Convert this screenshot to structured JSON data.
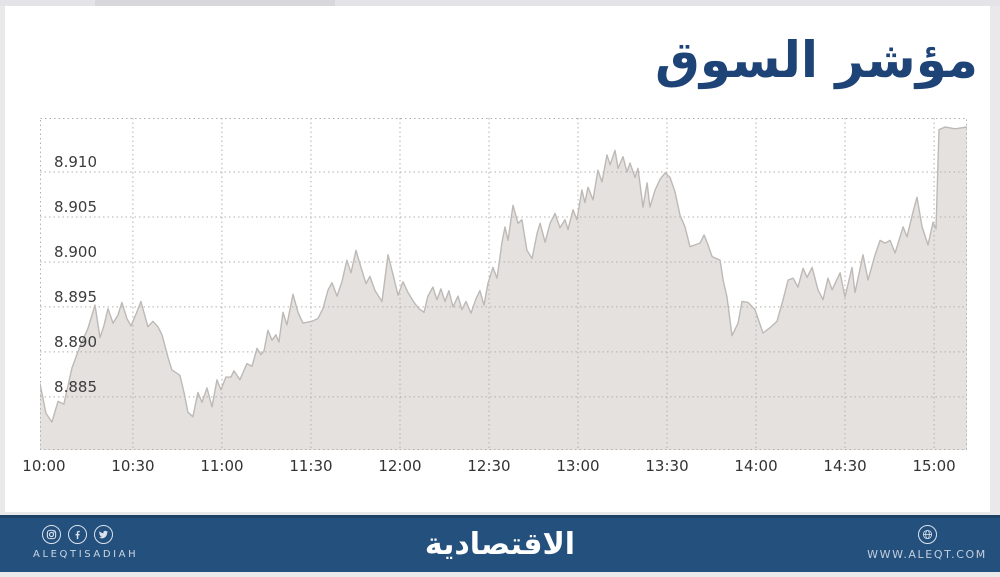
{
  "page": {
    "background": "#e9e9ec",
    "card_background": "#ffffff"
  },
  "header": {
    "title": "مؤشر السوق",
    "title_color": "#1d4377"
  },
  "chart_data": {
    "type": "area",
    "title": "مؤشر السوق",
    "xlabel": "",
    "ylabel": "",
    "x_ticks": [
      "10:00",
      "10:30",
      "11:00",
      "11:30",
      "12:00",
      "12:30",
      "13:00",
      "13:30",
      "14:00",
      "14:30",
      "15:00"
    ],
    "x_tick_hours": [
      10,
      10.5,
      11,
      11.5,
      12,
      12.5,
      13,
      13.5,
      14,
      14.5,
      15
    ],
    "y_ticks": [
      "8.910",
      "8.905",
      "8.900",
      "8.895",
      "8.890",
      "8.885"
    ],
    "y_tick_values": [
      8.91,
      8.905,
      8.9,
      8.895,
      8.89,
      8.885
    ],
    "x_range_hours": [
      9.978,
      15.185
    ],
    "y_range": [
      8.8791,
      8.916
    ],
    "grid": "dotted",
    "legend": "none",
    "fill_color": "#e4e1de",
    "line_color": "#bdb9b6",
    "grid_color": "#b3b0ac",
    "tick_label_color": "#3c3c3c",
    "points": [
      [
        9.978,
        8.8865
      ],
      [
        10.011,
        8.8832
      ],
      [
        10.045,
        8.8822
      ],
      [
        10.079,
        8.8845
      ],
      [
        10.112,
        8.8842
      ],
      [
        10.157,
        8.8882
      ],
      [
        10.202,
        8.8906
      ],
      [
        10.247,
        8.8926
      ],
      [
        10.287,
        8.8952
      ],
      [
        10.315,
        8.8916
      ],
      [
        10.337,
        8.8929
      ],
      [
        10.36,
        8.8948
      ],
      [
        10.388,
        8.8932
      ],
      [
        10.416,
        8.8941
      ],
      [
        10.438,
        8.8955
      ],
      [
        10.466,
        8.8937
      ],
      [
        10.489,
        8.8929
      ],
      [
        10.517,
        8.8942
      ],
      [
        10.545,
        8.8956
      ],
      [
        10.584,
        8.8928
      ],
      [
        10.612,
        8.8934
      ],
      [
        10.64,
        8.8928
      ],
      [
        10.663,
        8.8919
      ],
      [
        10.697,
        8.8894
      ],
      [
        10.719,
        8.888
      ],
      [
        10.764,
        8.8874
      ],
      [
        10.787,
        8.8855
      ],
      [
        10.809,
        8.8833
      ],
      [
        10.837,
        8.8828
      ],
      [
        10.865,
        8.8855
      ],
      [
        10.888,
        8.8844
      ],
      [
        10.916,
        8.886
      ],
      [
        10.944,
        8.8839
      ],
      [
        10.972,
        8.8869
      ],
      [
        10.994,
        8.8858
      ],
      [
        11.022,
        8.8872
      ],
      [
        11.051,
        8.8872
      ],
      [
        11.067,
        8.8879
      ],
      [
        11.101,
        8.8869
      ],
      [
        11.14,
        8.8887
      ],
      [
        11.169,
        8.8884
      ],
      [
        11.197,
        8.8904
      ],
      [
        11.219,
        8.8897
      ],
      [
        11.236,
        8.8901
      ],
      [
        11.258,
        8.8924
      ],
      [
        11.281,
        8.8913
      ],
      [
        11.303,
        8.8919
      ],
      [
        11.32,
        8.8911
      ],
      [
        11.343,
        8.8944
      ],
      [
        11.365,
        8.893
      ],
      [
        11.399,
        8.8964
      ],
      [
        11.427,
        8.8944
      ],
      [
        11.455,
        8.8932
      ],
      [
        11.506,
        8.8934
      ],
      [
        11.539,
        8.8937
      ],
      [
        11.567,
        8.8948
      ],
      [
        11.596,
        8.8969
      ],
      [
        11.618,
        8.8977
      ],
      [
        11.646,
        8.8962
      ],
      [
        11.674,
        8.8978
      ],
      [
        11.702,
        8.9002
      ],
      [
        11.725,
        8.8988
      ],
      [
        11.753,
        8.9013
      ],
      [
        11.781,
        8.8994
      ],
      [
        11.809,
        8.8976
      ],
      [
        11.831,
        8.8984
      ],
      [
        11.86,
        8.8968
      ],
      [
        11.899,
        8.8956
      ],
      [
        11.933,
        8.9008
      ],
      [
        11.961,
        8.8986
      ],
      [
        11.989,
        8.8963
      ],
      [
        12.017,
        8.8978
      ],
      [
        12.045,
        8.8966
      ],
      [
        12.079,
        8.8955
      ],
      [
        12.107,
        8.8948
      ],
      [
        12.135,
        8.8944
      ],
      [
        12.157,
        8.8962
      ],
      [
        12.185,
        8.8972
      ],
      [
        12.208,
        8.8958
      ],
      [
        12.23,
        8.897
      ],
      [
        12.253,
        8.8956
      ],
      [
        12.275,
        8.8968
      ],
      [
        12.298,
        8.895
      ],
      [
        12.326,
        8.8962
      ],
      [
        12.348,
        8.8947
      ],
      [
        12.371,
        8.8956
      ],
      [
        12.399,
        8.8943
      ],
      [
        12.427,
        8.8959
      ],
      [
        12.449,
        8.8968
      ],
      [
        12.472,
        8.8952
      ],
      [
        12.494,
        8.8976
      ],
      [
        12.522,
        8.8994
      ],
      [
        12.545,
        8.8982
      ],
      [
        12.573,
        8.9022
      ],
      [
        12.59,
        8.9039
      ],
      [
        12.607,
        8.9024
      ],
      [
        12.635,
        8.9063
      ],
      [
        12.663,
        8.9043
      ],
      [
        12.685,
        8.9047
      ],
      [
        12.713,
        8.9013
      ],
      [
        12.742,
        8.9004
      ],
      [
        12.77,
        8.9032
      ],
      [
        12.787,
        8.9043
      ],
      [
        12.815,
        8.9022
      ],
      [
        12.843,
        8.9043
      ],
      [
        12.871,
        8.9054
      ],
      [
        12.899,
        8.9038
      ],
      [
        12.927,
        8.9047
      ],
      [
        12.944,
        8.9036
      ],
      [
        12.972,
        8.9058
      ],
      [
        12.994,
        8.9047
      ],
      [
        13.022,
        8.908
      ],
      [
        13.039,
        8.9066
      ],
      [
        13.056,
        8.9083
      ],
      [
        13.084,
        8.9069
      ],
      [
        13.112,
        8.9102
      ],
      [
        13.135,
        8.9089
      ],
      [
        13.163,
        8.9119
      ],
      [
        13.18,
        8.9108
      ],
      [
        13.208,
        8.9124
      ],
      [
        13.225,
        8.9104
      ],
      [
        13.253,
        8.9117
      ],
      [
        13.275,
        8.91
      ],
      [
        13.292,
        8.911
      ],
      [
        13.32,
        8.9094
      ],
      [
        13.337,
        8.9104
      ],
      [
        13.365,
        8.9061
      ],
      [
        13.388,
        8.9088
      ],
      [
        13.404,
        8.9061
      ],
      [
        13.433,
        8.908
      ],
      [
        13.461,
        8.9092
      ],
      [
        13.489,
        8.9099
      ],
      [
        13.517,
        8.9094
      ],
      [
        13.545,
        8.9078
      ],
      [
        13.573,
        8.9052
      ],
      [
        13.601,
        8.9039
      ],
      [
        13.629,
        8.9017
      ],
      [
        13.657,
        8.9019
      ],
      [
        13.685,
        8.9021
      ],
      [
        13.708,
        8.903
      ],
      [
        13.73,
        8.9019
      ],
      [
        13.753,
        8.9006
      ],
      [
        13.798,
        8.9002
      ],
      [
        13.815,
        8.898
      ],
      [
        13.837,
        8.8961
      ],
      [
        13.865,
        8.8918
      ],
      [
        13.899,
        8.8932
      ],
      [
        13.921,
        8.8956
      ],
      [
        13.955,
        8.8955
      ],
      [
        13.994,
        8.8947
      ],
      [
        14.039,
        8.8921
      ],
      [
        14.079,
        8.8927
      ],
      [
        14.118,
        8.8934
      ],
      [
        14.152,
        8.8958
      ],
      [
        14.18,
        8.898
      ],
      [
        14.208,
        8.8982
      ],
      [
        14.236,
        8.8972
      ],
      [
        14.264,
        8.8993
      ],
      [
        14.287,
        8.8983
      ],
      [
        14.315,
        8.8994
      ],
      [
        14.348,
        8.8969
      ],
      [
        14.376,
        8.8958
      ],
      [
        14.404,
        8.8982
      ],
      [
        14.427,
        8.8969
      ],
      [
        14.472,
        8.8988
      ],
      [
        14.5,
        8.8961
      ],
      [
        14.539,
        8.8994
      ],
      [
        14.556,
        8.8966
      ],
      [
        14.601,
        8.9008
      ],
      [
        14.629,
        8.898
      ],
      [
        14.669,
        8.9008
      ],
      [
        14.697,
        8.9024
      ],
      [
        14.725,
        8.9021
      ],
      [
        14.753,
        8.9024
      ],
      [
        14.781,
        8.901
      ],
      [
        14.826,
        8.9039
      ],
      [
        14.848,
        8.9028
      ],
      [
        14.882,
        8.9056
      ],
      [
        14.904,
        8.9072
      ],
      [
        14.933,
        8.9039
      ],
      [
        14.966,
        8.9019
      ],
      [
        14.994,
        8.9044
      ],
      [
        15.011,
        8.9037
      ],
      [
        15.028,
        8.9147
      ],
      [
        15.062,
        8.915
      ],
      [
        15.118,
        8.9148
      ],
      [
        15.185,
        8.915
      ]
    ]
  },
  "footer": {
    "background": "#24507d",
    "brand_latin": "ALEQTISADIAH",
    "logo_arabic": "الاقتصادية",
    "website": "WWW.ALEQT.COM",
    "icons": [
      "instagram-icon",
      "facebook-icon",
      "twitter-icon",
      "globe-icon"
    ]
  }
}
